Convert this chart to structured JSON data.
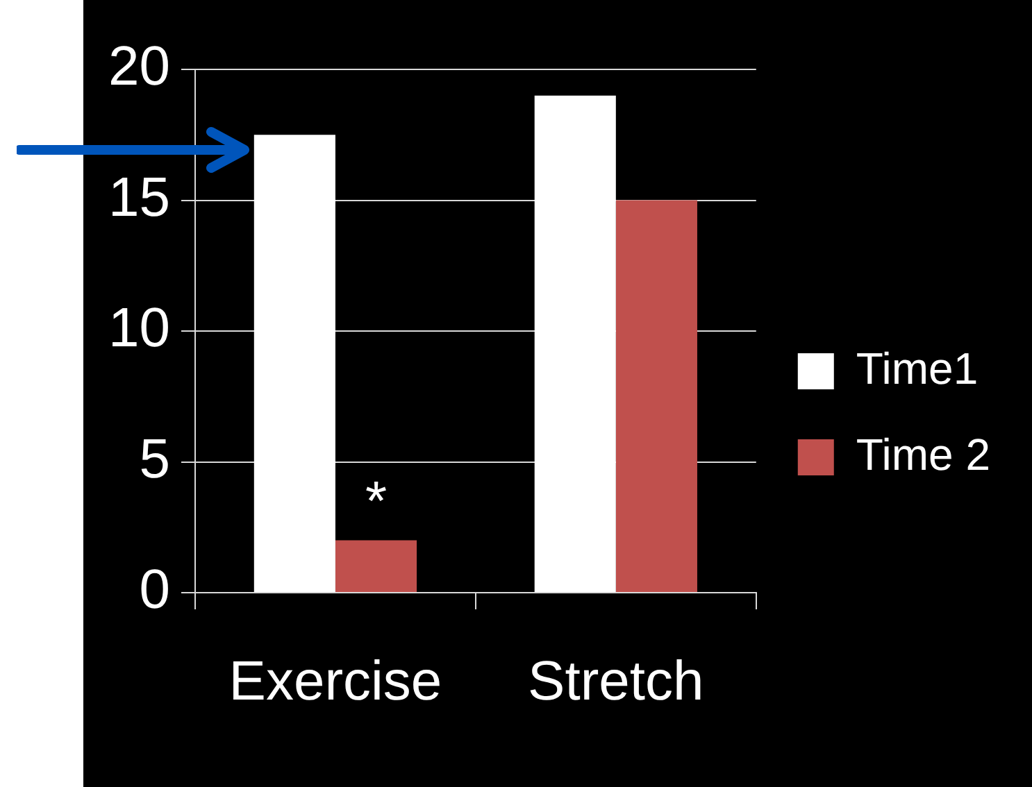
{
  "chart_data": {
    "type": "bar",
    "categories": [
      "Exercise",
      "Stretch"
    ],
    "series": [
      {
        "name": "Time1",
        "color": "#ffffff",
        "values": [
          17.5,
          19
        ]
      },
      {
        "name": "Time 2",
        "color": "#c0504d",
        "values": [
          2,
          15
        ]
      }
    ],
    "ylim": [
      0,
      20
    ],
    "yticks": [
      0,
      5,
      10,
      15,
      20
    ],
    "grid": "y",
    "legend": "right",
    "annotations": [
      {
        "text": "*",
        "x": "Exercise",
        "y": 2
      }
    ]
  }
}
